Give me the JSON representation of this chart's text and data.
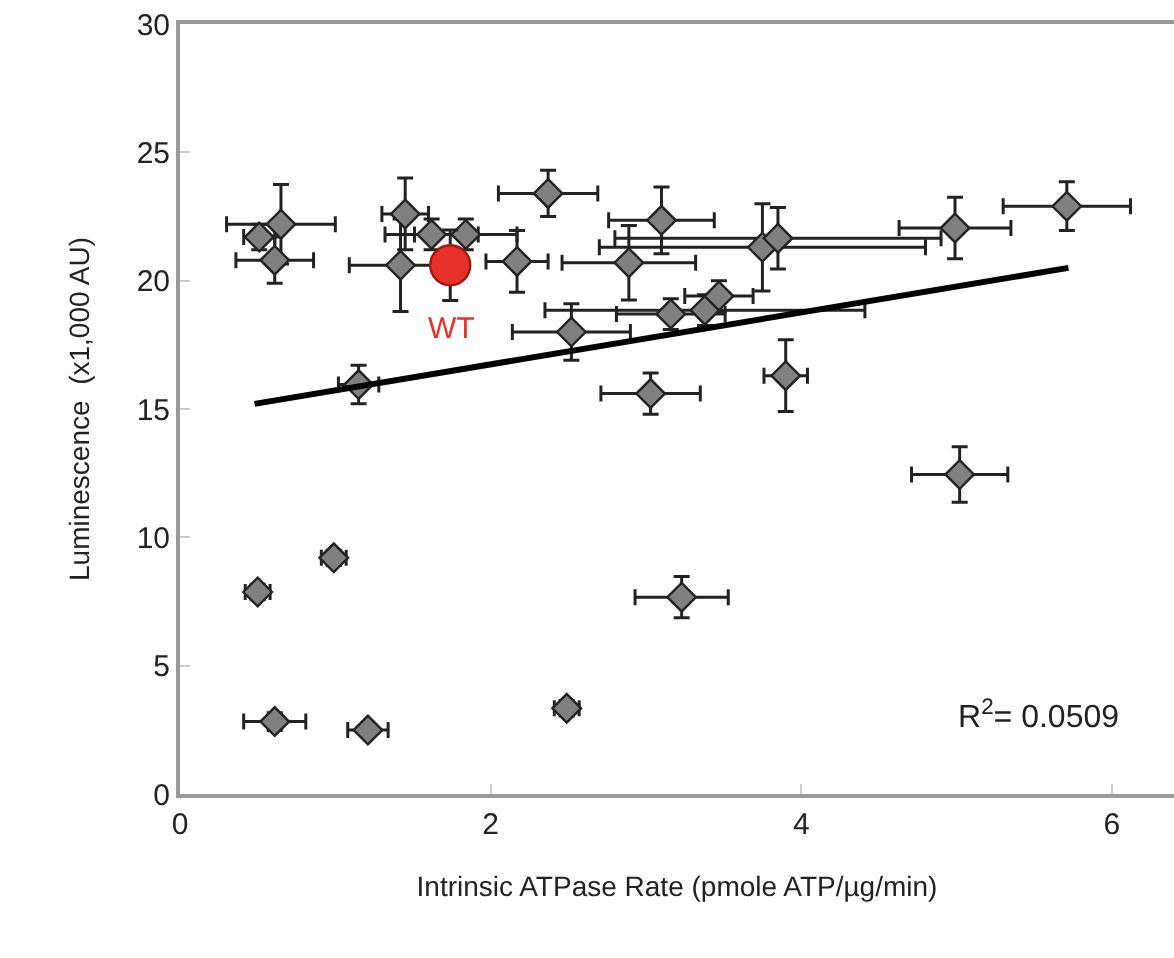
{
  "chart_data": {
    "type": "scatter",
    "xlabel": "Intrinsic ATPase Rate (pmole ATP/µg/min)",
    "ylabel": "Luminescence  (x1,000 AU)",
    "xlim": [
      0,
      6.4
    ],
    "xticks": [
      0,
      2,
      4,
      6
    ],
    "ylim": [
      0,
      30
    ],
    "yticks": [
      0,
      5,
      10,
      15,
      20,
      25,
      30
    ],
    "grid": false,
    "series": [
      {
        "marker": "diamond",
        "color": "#808080",
        "x": [
          0.65,
          0.51,
          0.61,
          1.45,
          1.42,
          1.62,
          1.84,
          2.17,
          2.37,
          3.1,
          2.89,
          2.52,
          3.16,
          3.38,
          3.47,
          1.15,
          3.03,
          3.9,
          3.75,
          3.85,
          4.99,
          5.71,
          5.02,
          3.23,
          0.5,
          0.99,
          0.61,
          1.21,
          2.49
        ],
        "values": [
          22.2,
          21.7,
          20.8,
          22.6,
          20.6,
          21.8,
          21.8,
          20.75,
          23.4,
          22.35,
          20.7,
          18.0,
          18.7,
          18.85,
          19.4,
          15.95,
          15.6,
          16.3,
          21.3,
          21.65,
          22.05,
          22.9,
          12.45,
          7.67,
          7.87,
          9.2,
          2.82,
          2.49,
          3.34
        ],
        "errors": [
          1.55,
          0.5,
          0.9,
          1.4,
          1.8,
          0.6,
          0.6,
          1.2,
          0.9,
          1.3,
          1.45,
          1.1,
          0.6,
          0.6,
          0.6,
          0.75,
          0.8,
          1.4,
          1.7,
          1.2,
          1.2,
          0.95,
          1.08,
          0.8,
          0.3,
          0.3,
          0.35,
          0.25,
          0.3
        ],
        "xerrors": [
          0.35,
          0.1,
          0.25,
          0.15,
          0.33,
          0.3,
          0.33,
          0.2,
          0.32,
          0.34,
          0.43,
          0.38,
          0.35,
          1.03,
          0.22,
          0.13,
          0.32,
          0.14,
          1.05,
          1.05,
          0.36,
          0.41,
          0.31,
          0.3,
          0.08,
          0.08,
          0.2,
          0.13,
          0.08
        ]
      },
      {
        "marker": "circle",
        "color": "#e8302a",
        "x": [
          1.74
        ],
        "values": [
          20.6
        ],
        "errors": [
          1.37
        ]
      },
      {
        "type": "line",
        "marker": "none",
        "line_style": "solid",
        "color": "#000000",
        "x": [
          0.48,
          5.72
        ],
        "values": [
          15.2,
          20.5
        ]
      }
    ],
    "annotations": [
      {
        "text": "WT",
        "x": 1.74,
        "y": 20.6
      },
      "R$^{2}$= 0.0509"
    ]
  }
}
